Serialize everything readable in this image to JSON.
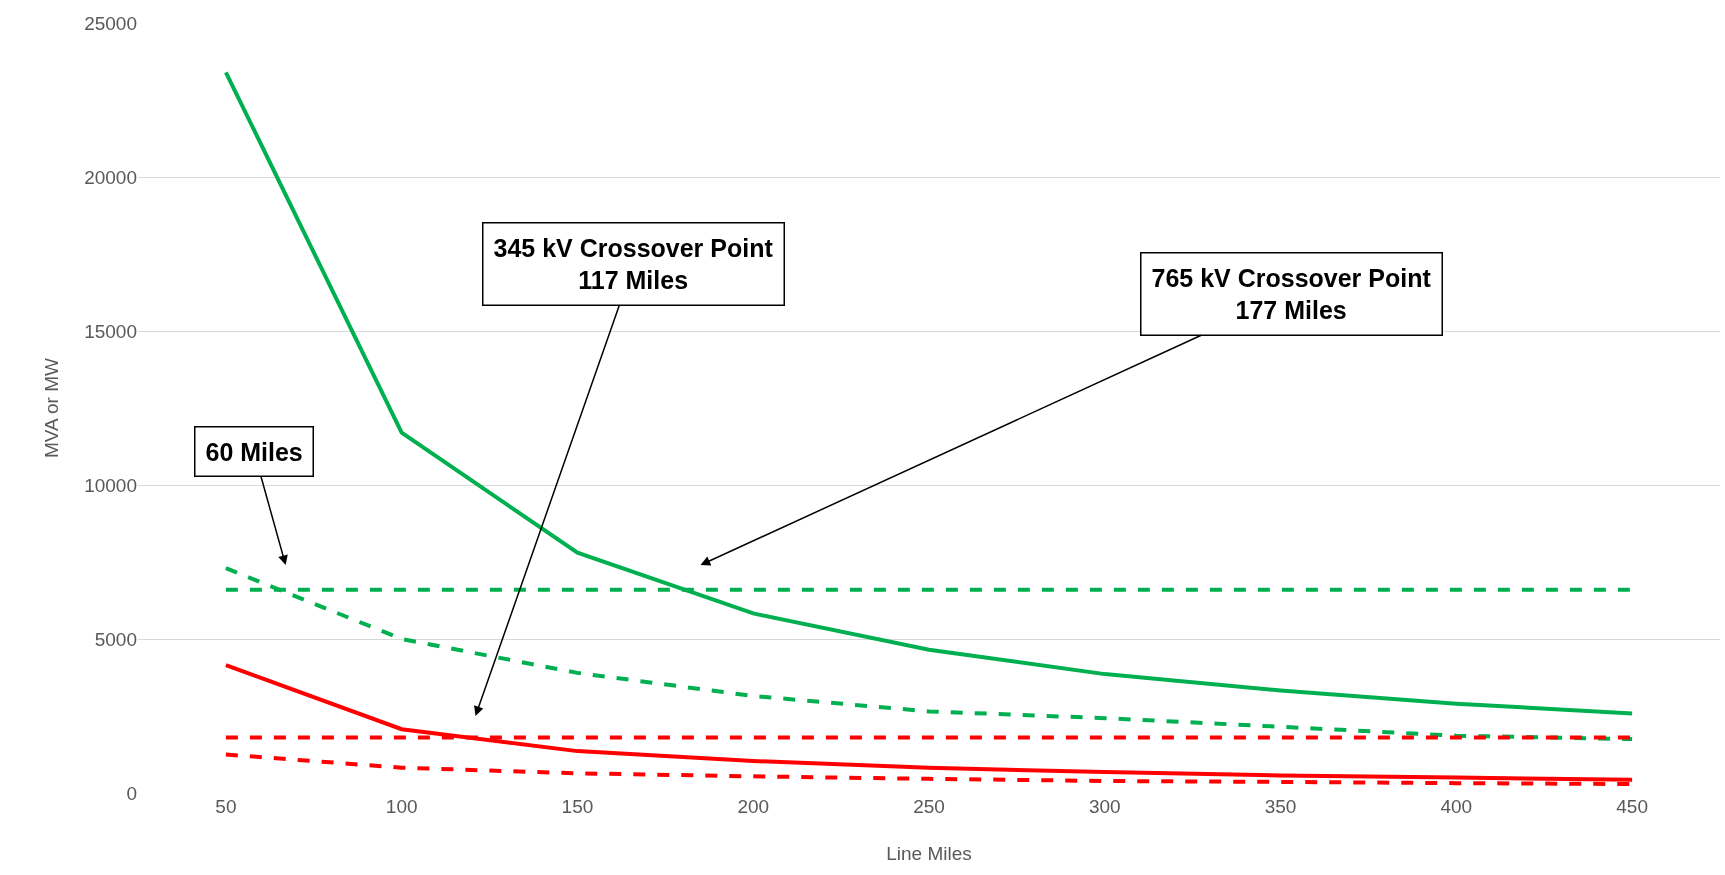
{
  "chart_data": {
    "type": "line",
    "xlabel": "Line Miles",
    "ylabel": "MVA or MW",
    "x": [
      50,
      100,
      150,
      200,
      250,
      300,
      350,
      400,
      450
    ],
    "xlim": [
      25,
      475
    ],
    "xticks": [
      50,
      100,
      150,
      200,
      250,
      300,
      350,
      400,
      450
    ],
    "ylim": [
      0,
      25000
    ],
    "yticks": [
      0,
      5000,
      10000,
      15000,
      20000,
      25000
    ],
    "grid": "y",
    "marker": "none",
    "series": [
      {
        "color": "#00b050",
        "line_style": "solid",
        "values": [
          23400,
          11700,
          7800,
          5830,
          4650,
          3860,
          3330,
          2900,
          2580
        ]
      },
      {
        "color": "#00b050",
        "line_style": "dashed",
        "values": [
          7300,
          5000,
          3900,
          3150,
          2650,
          2430,
          2150,
          1860,
          1750
        ]
      },
      {
        "color": "#00b050",
        "line_style": "dashed",
        "values": [
          6600,
          6600,
          6600,
          6600,
          6600,
          6600,
          6600,
          6600,
          6600
        ]
      },
      {
        "color": "#ff0000",
        "line_style": "solid",
        "values": [
          4150,
          2070,
          1360,
          1040,
          820,
          680,
          570,
          500,
          430
        ]
      },
      {
        "color": "#ff0000",
        "line_style": "dashed",
        "values": [
          1800,
          1800,
          1800,
          1800,
          1800,
          1800,
          1800,
          1800,
          1800
        ]
      },
      {
        "color": "#ff0000",
        "line_style": "dashed",
        "values": [
          1250,
          820,
          640,
          540,
          460,
          390,
          360,
          320,
          290
        ]
      }
    ],
    "annotations": [
      "345 kV Crossover Point\n117 Miles",
      "765 kV Crossover Point\n177 Miles",
      "60 Miles"
    ]
  }
}
